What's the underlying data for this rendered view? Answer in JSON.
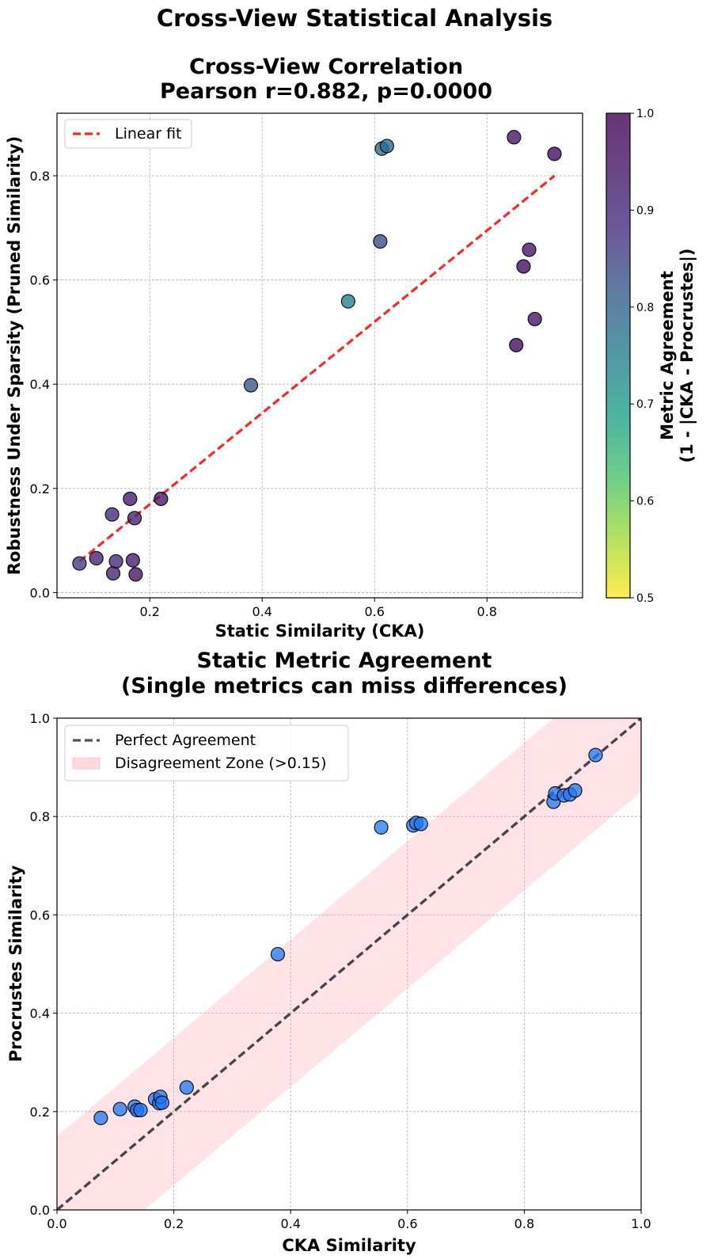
{
  "figure_title": "Cross-View Statistical Analysis",
  "chart_data": [
    {
      "type": "scatter",
      "title_line1": "Cross-View Correlation",
      "title_line2": "Pearson r=0.882, p=0.0000",
      "xlabel": "Static Similarity (CKA)",
      "ylabel": "Robustness Under Sparsity (Pruned Similarity)",
      "xlim": [
        0.035,
        0.97
      ],
      "ylim": [
        -0.01,
        0.92
      ],
      "xticks": [
        0.2,
        0.4,
        0.6,
        0.8
      ],
      "yticks": [
        0.0,
        0.2,
        0.4,
        0.6,
        0.8
      ],
      "grid": true,
      "legend": {
        "position": "top-left",
        "entries": [
          "Linear fit"
        ]
      },
      "fit_line": {
        "label": "Linear fit",
        "color": "#ff0000",
        "x": [
          0.075,
          0.92
        ],
        "y": [
          0.06,
          0.8
        ]
      },
      "points": [
        {
          "x": 0.075,
          "y": 0.056,
          "c": 0.91
        },
        {
          "x": 0.105,
          "y": 0.066,
          "c": 0.95
        },
        {
          "x": 0.133,
          "y": 0.15,
          "c": 0.94
        },
        {
          "x": 0.135,
          "y": 0.037,
          "c": 0.95
        },
        {
          "x": 0.14,
          "y": 0.06,
          "c": 0.94
        },
        {
          "x": 0.165,
          "y": 0.18,
          "c": 0.96
        },
        {
          "x": 0.17,
          "y": 0.062,
          "c": 0.96
        },
        {
          "x": 0.173,
          "y": 0.143,
          "c": 0.95
        },
        {
          "x": 0.175,
          "y": 0.035,
          "c": 0.97
        },
        {
          "x": 0.22,
          "y": 0.18,
          "c": 0.97
        },
        {
          "x": 0.38,
          "y": 0.398,
          "c": 0.86
        },
        {
          "x": 0.553,
          "y": 0.559,
          "c": 0.78
        },
        {
          "x": 0.61,
          "y": 0.674,
          "c": 0.88
        },
        {
          "x": 0.613,
          "y": 0.852,
          "c": 0.83
        },
        {
          "x": 0.622,
          "y": 0.857,
          "c": 0.83
        },
        {
          "x": 0.848,
          "y": 0.874,
          "c": 0.97
        },
        {
          "x": 0.852,
          "y": 0.475,
          "c": 0.98
        },
        {
          "x": 0.865,
          "y": 0.626,
          "c": 0.98
        },
        {
          "x": 0.875,
          "y": 0.658,
          "c": 0.97
        },
        {
          "x": 0.885,
          "y": 0.525,
          "c": 0.97
        },
        {
          "x": 0.92,
          "y": 0.842,
          "c": 0.98
        }
      ],
      "colorbar": {
        "label_line1": "Metric Agreement",
        "label_line2": "(1 - |CKA - Procrustes|)",
        "range": [
          0.5,
          1.0
        ],
        "ticks": [
          0.5,
          0.6,
          0.7,
          0.8,
          0.9,
          1.0
        ],
        "colormap": "viridis_r"
      }
    },
    {
      "type": "scatter",
      "title_line1": "Static Metric Agreement",
      "title_line2": "(Single metrics can miss differences)",
      "xlabel": "CKA Similarity",
      "ylabel": "Procrustes Similarity",
      "xlim": [
        0.0,
        1.0
      ],
      "ylim": [
        0.0,
        1.0
      ],
      "xticks": [
        0.0,
        0.2,
        0.4,
        0.6,
        0.8,
        1.0
      ],
      "yticks": [
        0.0,
        0.2,
        0.4,
        0.6,
        0.8,
        1.0
      ],
      "grid": true,
      "legend": {
        "position": "top-left",
        "entries": [
          "Perfect Agreement",
          "Disagreement Zone (>0.15)"
        ]
      },
      "diagonal": {
        "label": "Perfect Agreement",
        "color": "#333333"
      },
      "band": {
        "label": "Disagreement Zone (>0.15)",
        "width": 0.15,
        "color": "#ffc0c8"
      },
      "point_color": "#1f77f4",
      "points": [
        {
          "x": 0.075,
          "y": 0.187
        },
        {
          "x": 0.108,
          "y": 0.205
        },
        {
          "x": 0.133,
          "y": 0.21
        },
        {
          "x": 0.137,
          "y": 0.203
        },
        {
          "x": 0.143,
          "y": 0.203
        },
        {
          "x": 0.168,
          "y": 0.225
        },
        {
          "x": 0.175,
          "y": 0.217
        },
        {
          "x": 0.177,
          "y": 0.23
        },
        {
          "x": 0.18,
          "y": 0.218
        },
        {
          "x": 0.222,
          "y": 0.249
        },
        {
          "x": 0.378,
          "y": 0.52
        },
        {
          "x": 0.555,
          "y": 0.778
        },
        {
          "x": 0.61,
          "y": 0.782
        },
        {
          "x": 0.615,
          "y": 0.787
        },
        {
          "x": 0.623,
          "y": 0.785
        },
        {
          "x": 0.85,
          "y": 0.83
        },
        {
          "x": 0.853,
          "y": 0.847
        },
        {
          "x": 0.868,
          "y": 0.843
        },
        {
          "x": 0.878,
          "y": 0.845
        },
        {
          "x": 0.887,
          "y": 0.853
        },
        {
          "x": 0.922,
          "y": 0.925
        }
      ]
    }
  ]
}
